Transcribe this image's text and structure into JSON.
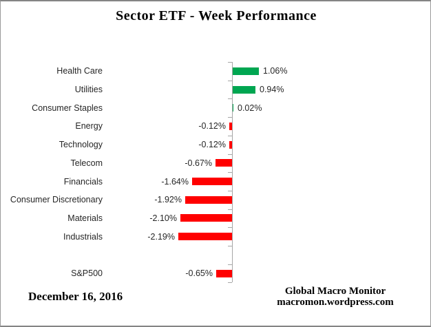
{
  "chart_data": {
    "type": "bar",
    "orientation": "horizontal",
    "title": "Sector ETF - Week Performance",
    "unit": "%",
    "categories": [
      "Health Care",
      "Utilities",
      "Consumer Staples",
      "Energy",
      "Technology",
      "Telecom",
      "Financials",
      "Consumer Discretionary",
      "Materials",
      "Industrials",
      "",
      "S&P500"
    ],
    "values": [
      1.06,
      0.94,
      0.02,
      -0.12,
      -0.12,
      -0.67,
      -1.64,
      -1.92,
      -2.1,
      -2.19,
      null,
      -0.65
    ],
    "value_labels": [
      "1.06%",
      "0.94%",
      "0.02%",
      "-0.12%",
      "-0.12%",
      "-0.67%",
      "-1.64%",
      "-1.92%",
      "-2.10%",
      "-2.19%",
      "",
      "-0.65%"
    ],
    "xlim": [
      -2.5,
      1.5
    ],
    "grid": false,
    "legend": false,
    "positive_color": "#00A651",
    "negative_color": "#FF0000",
    "axis_color": "#A6A6A6"
  },
  "footer": {
    "date": "December 16, 2016",
    "attribution_line1": "Global Macro Monitor",
    "attribution_line2": "macromon.wordpress.com"
  }
}
